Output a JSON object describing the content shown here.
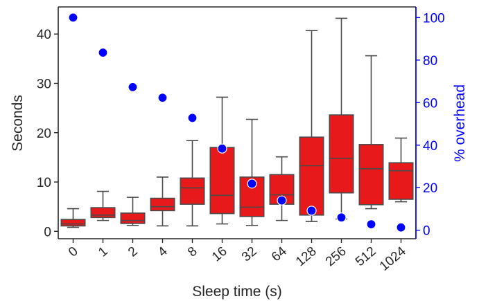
{
  "chart_data": {
    "type": "box",
    "categories": [
      "0",
      "1",
      "2",
      "4",
      "8",
      "16",
      "32",
      "64",
      "128",
      "256",
      "512",
      "1024"
    ],
    "xlabel": "Sleep time (s)",
    "ylabel": "Seconds",
    "ylabel_right": "% overhead",
    "ylim": [
      -1.5,
      45.5
    ],
    "ylim_right": [
      -4,
      105
    ],
    "yticks": [
      0,
      10,
      20,
      30,
      40
    ],
    "yticks_right": [
      0,
      20,
      40,
      60,
      80,
      100
    ],
    "box_series": {
      "color": "#e8191b",
      "stats": [
        {
          "whislo": 0.8,
          "q1": 1.1,
          "med": 1.5,
          "q3": 2.4,
          "whishi": 4.6
        },
        {
          "whislo": 2.2,
          "q1": 2.8,
          "med": 3.3,
          "q3": 4.8,
          "whishi": 8.1
        },
        {
          "whislo": 1.2,
          "q1": 1.6,
          "med": 2.2,
          "q3": 3.7,
          "whishi": 6.9
        },
        {
          "whislo": 1.1,
          "q1": 4.2,
          "med": 5.0,
          "q3": 6.7,
          "whishi": 11.0
        },
        {
          "whislo": 1.1,
          "q1": 5.5,
          "med": 8.8,
          "q3": 10.8,
          "whishi": 18.4
        },
        {
          "whislo": 1.5,
          "q1": 3.6,
          "med": 7.3,
          "q3": 17.0,
          "whishi": 27.2
        },
        {
          "whislo": 1.2,
          "q1": 3.0,
          "med": 4.9,
          "q3": 11.0,
          "whishi": 22.7
        },
        {
          "whislo": 2.2,
          "q1": 5.5,
          "med": 7.4,
          "q3": 11.5,
          "whishi": 15.1
        },
        {
          "whislo": 2.0,
          "q1": 3.3,
          "med": 13.3,
          "q3": 19.1,
          "whishi": 40.7
        },
        {
          "whislo": 2.5,
          "q1": 7.8,
          "med": 14.8,
          "q3": 23.6,
          "whishi": 43.2
        },
        {
          "whislo": 4.6,
          "q1": 5.4,
          "med": 12.7,
          "q3": 17.6,
          "whishi": 35.6
        },
        {
          "whislo": 6.0,
          "q1": 6.5,
          "med": 12.3,
          "q3": 13.9,
          "whishi": 18.9
        }
      ]
    },
    "overhead_series": {
      "color": "#0000ff",
      "values": [
        100,
        83.5,
        67.3,
        62.3,
        52.8,
        38.4,
        21.9,
        14.0,
        9.2,
        6.0,
        2.8,
        1.3
      ]
    }
  }
}
